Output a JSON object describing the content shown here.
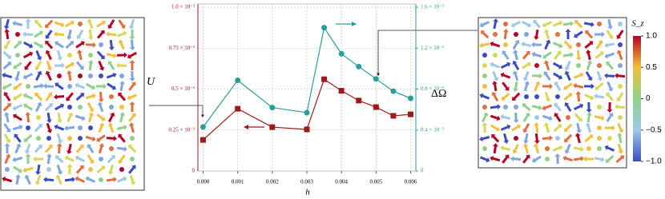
{
  "chart_data": {
    "type": "line",
    "x": [
      0,
      0.001,
      0.002,
      0.003,
      0.0035,
      0.004,
      0.0045,
      0.005,
      0.0055,
      0.006
    ],
    "x_label": "h",
    "series": [
      {
        "name": "U",
        "color": "#a01818",
        "marker": "square",
        "values": [
          0.00019,
          0.00038,
          0.000268,
          0.000254,
          0.00056,
          0.00049,
          0.00043,
          0.00039,
          0.000337,
          0.000346
        ]
      },
      {
        "name": "ΔΩ",
        "color": "#2a9d9a",
        "marker": "circle",
        "axis": "y2",
        "values": [
          4.3e-06,
          8.86e-06,
          6.2e-06,
          5.7e-06,
          1.4e-05,
          1.145e-05,
          1.02e-05,
          9e-06,
          7.8e-06,
          7.1e-06
        ]
      }
    ],
    "xlim": [
      -0.00015,
      0.00615
    ],
    "xticks": [
      {
        "value": 0,
        "label": "0.000"
      },
      {
        "value": 0.001,
        "label": "0.001"
      },
      {
        "value": 0.002,
        "label": "0.002"
      },
      {
        "value": 0.003,
        "label": "0.003"
      },
      {
        "value": 0.004,
        "label": "0.004"
      },
      {
        "value": 0.005,
        "label": "0.005"
      },
      {
        "value": 0.006,
        "label": "0.006"
      }
    ],
    "ylim": [
      0,
      0.001
    ],
    "yticks": [
      0,
      {
        "value": 0.00025,
        "label": "0.25 × 10⁻³"
      },
      {
        "value": 0.0005,
        "label": "0.5 × 10⁻³"
      },
      {
        "value": 0.00075,
        "label": "0.75 × 10⁻³"
      },
      {
        "value": 0.001,
        "label": "1.0 × 10⁻³"
      }
    ],
    "y2lim": [
      0,
      1.6e-05
    ],
    "y2ticks": [
      0,
      {
        "value": 4e-06,
        "label": "0.4 × 10⁻⁵"
      },
      {
        "value": 8e-06,
        "label": "0.8 × 10⁻⁵"
      },
      {
        "value": 1.2e-05,
        "label": "1.2 × 10⁻⁵"
      },
      {
        "value": 1.6e-05,
        "label": "1.6 × 10⁻⁵"
      }
    ],
    "grid": true,
    "colorbar": {
      "title": "S_z",
      "lim": [
        -1,
        1
      ],
      "ticks": [
        {
          "value": 1,
          "label": "1.0"
        },
        0.5,
        0,
        {
          "value": -0.5,
          "label": "−0.5"
        },
        {
          "value": -1,
          "label": "−1.0"
        }
      ]
    }
  }
}
